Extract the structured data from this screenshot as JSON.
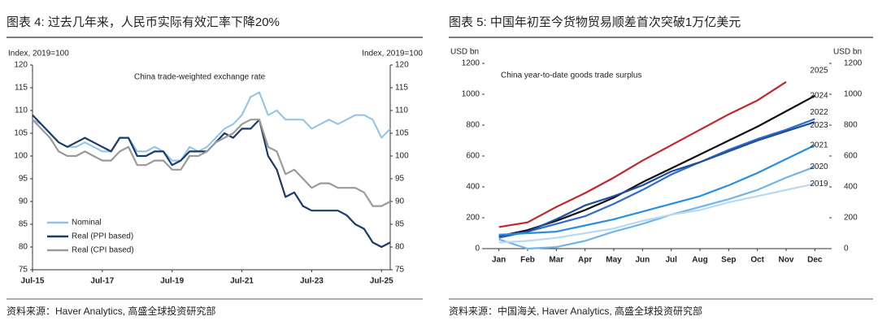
{
  "chart_data": [
    {
      "type": "line",
      "title": "图表 4: 过去几年来，人民币实际有效汇率下降20%",
      "annotation": "China trade-weighted exchange rate",
      "y_label": "Index, 2019=100",
      "y2_label": "Index, 2019=100",
      "source": "资料来源：Haver Analytics, 高盛全球投资研究部",
      "legend": "lower left",
      "categories": [
        "Jul-15",
        null,
        null,
        null,
        null,
        null,
        null,
        null,
        "Jul-17",
        null,
        null,
        null,
        null,
        null,
        null,
        null,
        "Jul-19",
        null,
        null,
        null,
        null,
        null,
        null,
        null,
        "Jul-21",
        null,
        null,
        null,
        null,
        null,
        null,
        null,
        "Jul-23",
        null,
        null,
        null,
        null,
        null,
        null,
        null,
        "Jul-25",
        null
      ],
      "ylim": [
        75,
        120
      ],
      "yticks": [
        75,
        80,
        85,
        90,
        95,
        100,
        105,
        110,
        115,
        120
      ],
      "y2lim": [
        75,
        120
      ],
      "y2ticks": [
        75,
        80,
        85,
        90,
        95,
        100,
        105,
        110,
        115,
        120
      ],
      "series": [
        {
          "name": "Nominal",
          "color": "#8ec3ea",
          "values": [
            108,
            107,
            105,
            103,
            102,
            102,
            103,
            102,
            101,
            101,
            104,
            104,
            101,
            101,
            102,
            101,
            99,
            99,
            102,
            101,
            102,
            104,
            106,
            107,
            109,
            113,
            114,
            109,
            110,
            108,
            108,
            108,
            106,
            107,
            108,
            107,
            108,
            109,
            109,
            108,
            104,
            106
          ]
        },
        {
          "name": "Real (PPI based)",
          "color": "#1b3a6b",
          "values": [
            109,
            107,
            105,
            103,
            102,
            103,
            104,
            103,
            102,
            101,
            104,
            104,
            100,
            100,
            101,
            101,
            98,
            99,
            101,
            101,
            101,
            103,
            105,
            104,
            106,
            106,
            108,
            100,
            97,
            91,
            92,
            89,
            88,
            88,
            88,
            88,
            87,
            85,
            84,
            81,
            80,
            81
          ]
        },
        {
          "name": "Real (CPI based)",
          "color": "#9a9a9a",
          "values": [
            108,
            106,
            104,
            101,
            100,
            100,
            101,
            100,
            99,
            99,
            101,
            102,
            98,
            98,
            99,
            99,
            97,
            97,
            100,
            100,
            101,
            103,
            104,
            105,
            107,
            108,
            108,
            102,
            101,
            96,
            97,
            95,
            93,
            94,
            94,
            93,
            93,
            93,
            92,
            89,
            89,
            90
          ]
        }
      ]
    },
    {
      "type": "line",
      "title": "图表 5: 中国年初至今货物贸易顺差首次突破1万亿美元",
      "annotation": "China year-to-date goods trade surplus",
      "y_label": "USD bn",
      "y2_label": "USD bn",
      "source": "资料来源：中国海关, Haver Analytics, 高盛全球投资研究部",
      "legend": "direct",
      "categories": [
        "Jan",
        "Feb",
        "Mar",
        "Apr",
        "May",
        "Jun",
        "Jul",
        "Aug",
        "Sep",
        "Oct",
        "Nov",
        "Dec"
      ],
      "ylim": [
        0,
        1200
      ],
      "yticks": [
        0,
        200,
        400,
        600,
        800,
        1000,
        1200
      ],
      "y2lim": [
        0,
        1200
      ],
      "y2ticks": [
        0,
        200,
        400,
        600,
        800,
        1000,
        1200
      ],
      "series": [
        {
          "name": "2025",
          "color": "#c0282d",
          "values": [
            140,
            170,
            270,
            360,
            460,
            570,
            670,
            770,
            870,
            960,
            1080,
            null
          ]
        },
        {
          "name": "2024",
          "color": "#111111",
          "values": [
            80,
            120,
            180,
            250,
            330,
            430,
            520,
            610,
            700,
            790,
            890,
            990
          ]
        },
        {
          "name": "2022",
          "color": "#2e6bd0",
          "values": [
            70,
            110,
            160,
            210,
            290,
            380,
            480,
            560,
            640,
            710,
            770,
            840
          ]
        },
        {
          "name": "2023",
          "color": "#1f4e9e",
          "values": [
            80,
            110,
            190,
            280,
            340,
            410,
            500,
            560,
            630,
            700,
            760,
            820
          ]
        },
        {
          "name": "2021",
          "color": "#2a8ee0",
          "values": [
            90,
            100,
            110,
            150,
            190,
            240,
            290,
            340,
            410,
            490,
            580,
            670
          ]
        },
        {
          "name": "2020",
          "color": "#6fb5ea",
          "values": [
            60,
            0,
            10,
            50,
            110,
            160,
            220,
            270,
            320,
            380,
            460,
            530
          ]
        },
        {
          "name": "2019",
          "color": "#b9d9f3",
          "values": [
            40,
            50,
            70,
            100,
            130,
            180,
            220,
            250,
            300,
            340,
            380,
            420
          ]
        }
      ]
    }
  ]
}
